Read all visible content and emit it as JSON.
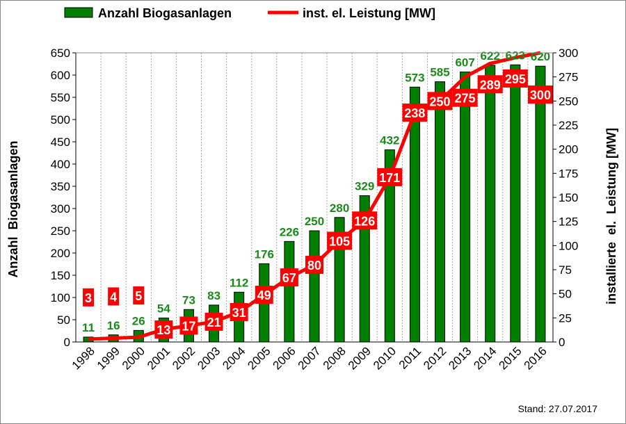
{
  "chart_data": {
    "type": "bar+line",
    "categories": [
      "1998",
      "1999",
      "2000",
      "2001",
      "2002",
      "2003",
      "2004",
      "2005",
      "2006",
      "2007",
      "2008",
      "2009",
      "2010",
      "2011",
      "2012",
      "2013",
      "2014",
      "2015",
      "2016"
    ],
    "series": [
      {
        "name": "Anzahl Biogasanlagen",
        "type": "bar",
        "axis": "left",
        "color": "#008000",
        "label_color": "#1a8a1a",
        "values": [
          11,
          16,
          26,
          54,
          73,
          83,
          112,
          176,
          226,
          250,
          280,
          329,
          432,
          573,
          585,
          607,
          622,
          623,
          620
        ]
      },
      {
        "name": "inst. el. Leistung [MW]",
        "type": "line",
        "axis": "right",
        "color": "#ff0000",
        "values": [
          3,
          4,
          5,
          13,
          17,
          21,
          31,
          49,
          67,
          80,
          105,
          126,
          171,
          238,
          250,
          275,
          289,
          295,
          300
        ]
      }
    ],
    "ylabel": "Anzahl  Biogasanlagen",
    "y2label": "installierte  el.  Leistung [MW]",
    "ylim": [
      0,
      650
    ],
    "yticks": [
      0,
      50,
      100,
      150,
      200,
      250,
      300,
      350,
      400,
      450,
      500,
      550,
      600,
      650
    ],
    "y2lim": [
      0,
      300
    ],
    "y2ticks": [
      0,
      25,
      50,
      75,
      100,
      125,
      150,
      175,
      200,
      225,
      250,
      275,
      300
    ],
    "grid": "vertical dashed",
    "legend": "top",
    "annotation": "Stand: 27.07.2017"
  }
}
